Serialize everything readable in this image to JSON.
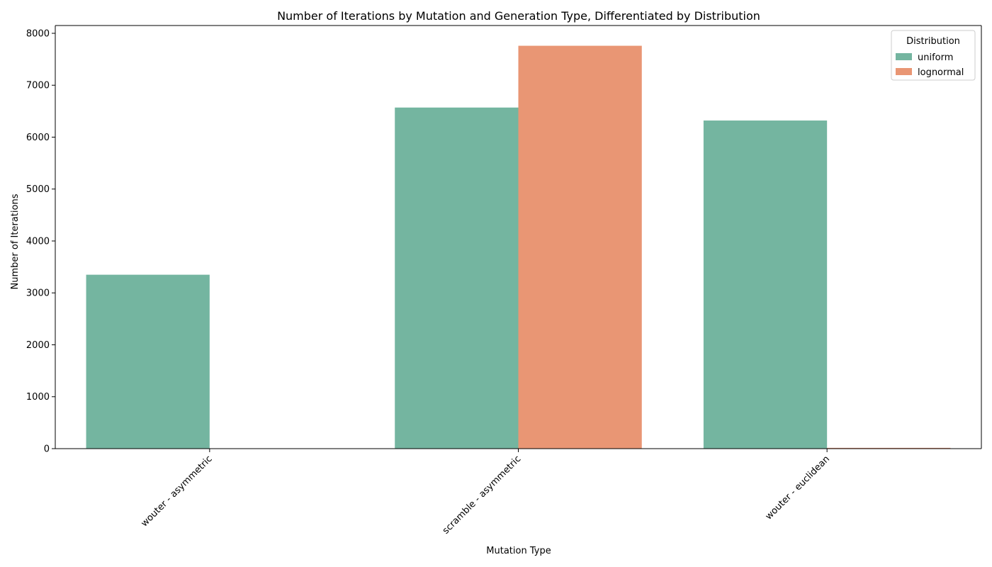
{
  "chart_data": {
    "type": "bar",
    "title": "Number of Iterations by Mutation and Generation Type, Differentiated by Distribution",
    "xlabel": "Mutation Type",
    "ylabel": "Number of Iterations",
    "categories": [
      "wouter - asymmetric",
      "scramble - asymmetric",
      "wouter - euclidean"
    ],
    "series": [
      {
        "name": "uniform",
        "color": "#74b5a0",
        "values": [
          3350,
          6570,
          6320
        ]
      },
      {
        "name": "lognormal",
        "color": "#e99674",
        "values": [
          0,
          7760,
          15
        ]
      }
    ],
    "ylim": [
      0,
      8150
    ],
    "yticks": [
      0,
      1000,
      2000,
      3000,
      4000,
      5000,
      6000,
      7000,
      8000
    ],
    "legend": {
      "title": "Distribution",
      "position": "top-right"
    },
    "grid": false
  }
}
